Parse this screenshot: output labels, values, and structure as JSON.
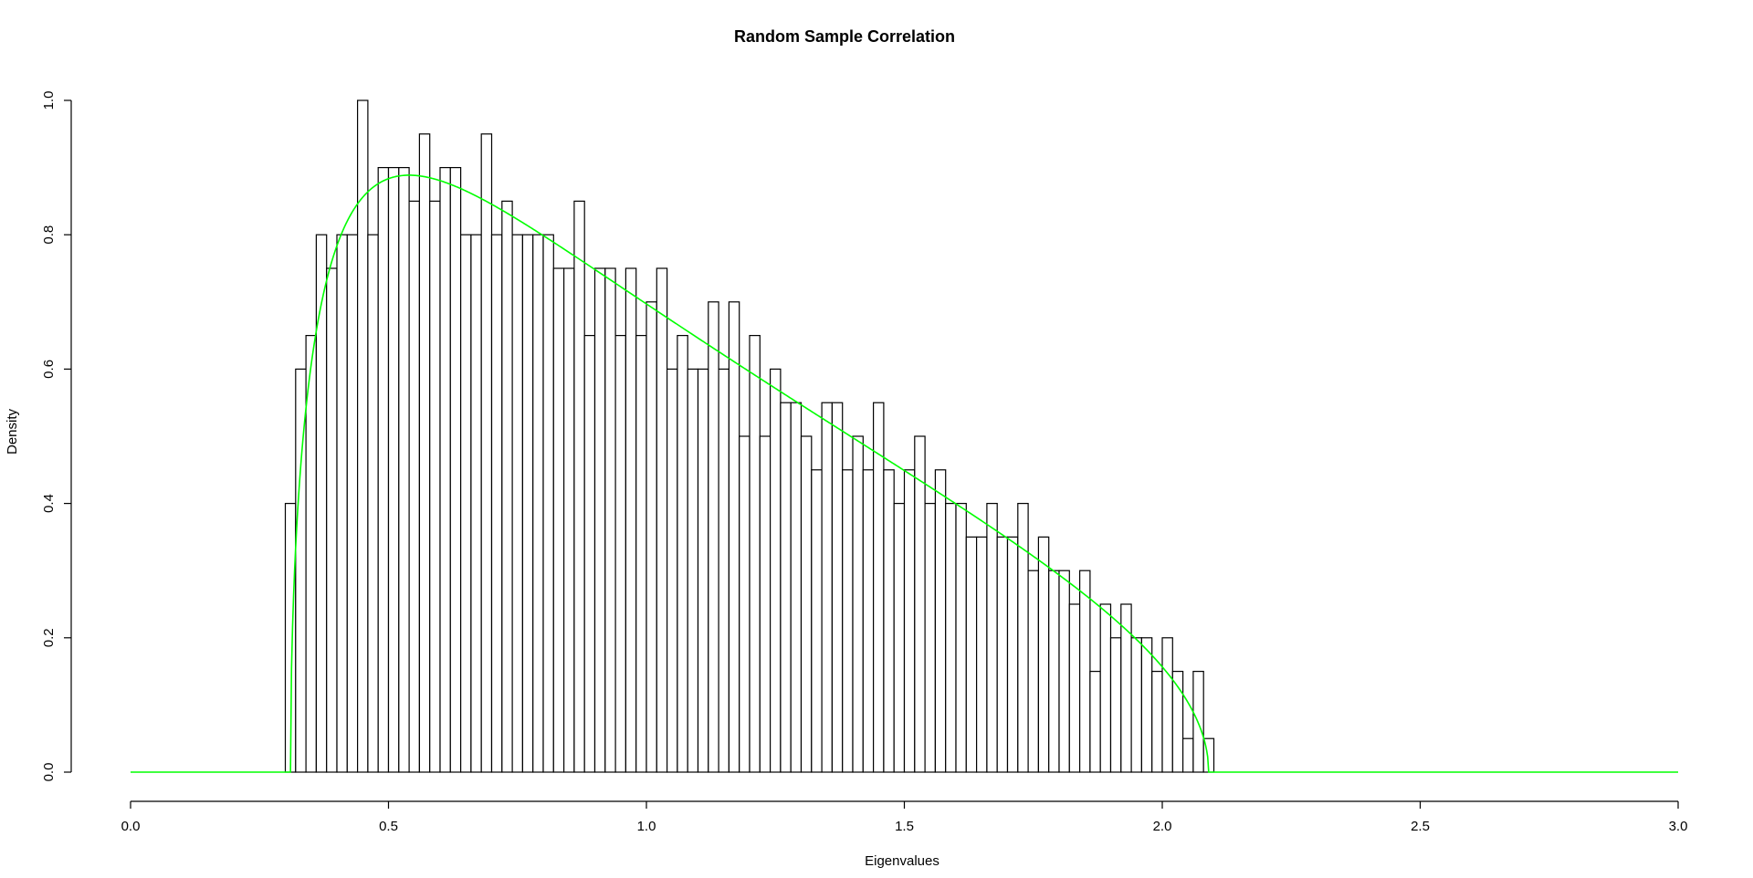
{
  "chart_data": {
    "type": "bar",
    "title": "Random Sample Correlation",
    "xlabel": "Eigenvalues",
    "ylabel": "Density",
    "xlim": [
      0,
      3
    ],
    "ylim": [
      0,
      1
    ],
    "xticks": [
      0,
      0.5,
      1,
      1.5,
      2,
      2.5,
      3
    ],
    "xtick_labels": [
      "0.0",
      "0.5",
      "1.0",
      "1.5",
      "2.0",
      "2.5",
      "3.0"
    ],
    "yticks": [
      0,
      0.2,
      0.4,
      0.6,
      0.8,
      1
    ],
    "ytick_labels": [
      "0.0",
      "0.2",
      "0.4",
      "0.6",
      "0.8",
      "1.0"
    ],
    "grid": false,
    "histogram": {
      "bin_start": 0.3,
      "bin_width": 0.02,
      "densities": [
        0.4,
        0.6,
        0.65,
        0.8,
        0.75,
        0.8,
        0.8,
        1.0,
        0.8,
        0.9,
        0.9,
        0.9,
        0.85,
        0.95,
        0.85,
        0.9,
        0.9,
        0.8,
        0.8,
        0.95,
        0.8,
        0.85,
        0.8,
        0.8,
        0.8,
        0.8,
        0.75,
        0.75,
        0.85,
        0.65,
        0.75,
        0.75,
        0.65,
        0.75,
        0.65,
        0.7,
        0.75,
        0.6,
        0.65,
        0.6,
        0.6,
        0.7,
        0.6,
        0.7,
        0.5,
        0.65,
        0.5,
        0.6,
        0.55,
        0.55,
        0.5,
        0.45,
        0.55,
        0.55,
        0.45,
        0.5,
        0.45,
        0.55,
        0.45,
        0.4,
        0.45,
        0.5,
        0.4,
        0.45,
        0.4,
        0.4,
        0.35,
        0.35,
        0.4,
        0.35,
        0.35,
        0.4,
        0.3,
        0.35,
        0.3,
        0.3,
        0.25,
        0.3,
        0.15,
        0.25,
        0.2,
        0.25,
        0.2,
        0.2,
        0.15,
        0.2,
        0.15,
        0.05,
        0.15,
        0.05
      ],
      "bar_color": "#ffffff",
      "edge_color": "#000000"
    },
    "density_curve": {
      "type": "marchenko-pastur",
      "support": [
        0.31,
        2.09
      ],
      "x_range": [
        0,
        3
      ],
      "color": "#00ff00"
    }
  }
}
